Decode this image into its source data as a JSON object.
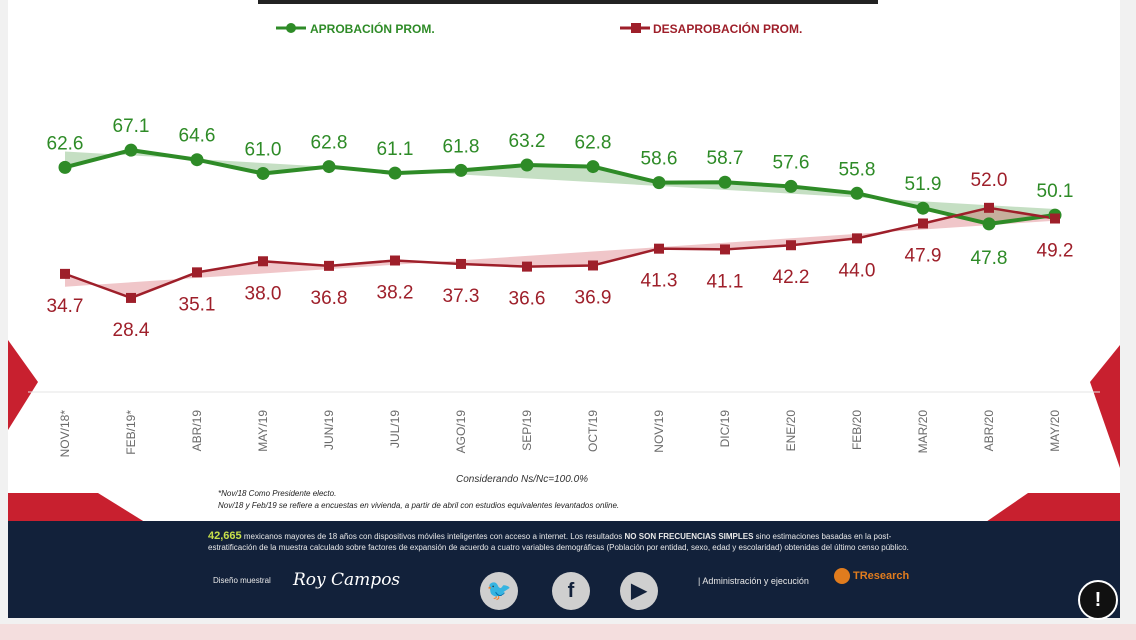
{
  "chart_data": {
    "type": "line",
    "categories": [
      "NOV/18*",
      "FEB/19*",
      "ABR/19",
      "MAY/19",
      "JUN/19",
      "JUL/19",
      "AGO/19",
      "SEP/19",
      "OCT/19",
      "NOV/19",
      "DIC/19",
      "ENE/20",
      "FEB/20",
      "MAR/20",
      "ABR/20",
      "MAY/20"
    ],
    "series": [
      {
        "name": "APROBACIÓN PROM.",
        "values": [
          62.6,
          67.1,
          64.6,
          61.0,
          62.8,
          61.1,
          61.8,
          63.2,
          62.8,
          58.6,
          58.7,
          57.6,
          55.8,
          51.9,
          47.8,
          50.1
        ],
        "labels": [
          "62.6",
          "67.1",
          "64.6",
          "61.0",
          "62.8",
          "61.1",
          "61.8",
          "63.2",
          "62.8",
          "58.6",
          "58.7",
          "57.6",
          "55.8",
          "51.9",
          "47.8",
          "50.1"
        ],
        "color": "#2e8b27"
      },
      {
        "name": "DESAPROBACIÓN PROM.",
        "values": [
          34.7,
          28.4,
          35.1,
          38.0,
          36.8,
          38.2,
          37.3,
          36.6,
          36.9,
          41.3,
          41.1,
          42.2,
          44.0,
          47.9,
          52.0,
          49.2
        ],
        "labels": [
          "34.7",
          "28.4",
          "35.1",
          "38.0",
          "36.8",
          "38.2",
          "37.3",
          "36.6",
          "36.9",
          "41.3",
          "41.1",
          "42.2",
          "44.0",
          "47.9",
          "52.0",
          "49.2"
        ],
        "color": "#9e1f2a"
      }
    ],
    "title": "",
    "xlabel": "",
    "ylabel": "",
    "ylim": [
      20,
      75
    ],
    "trend_bands": true,
    "legend_position": "top",
    "grid": false
  },
  "notes": {
    "considering": "Considerando Ns/Nc=100.0%",
    "footnote1": "*Nov/18 Como Presidente electo.",
    "footnote2": "Nov/18 y Feb/19 se refiere a encuestas en vivienda, a partir de abril con estudios equivalentes levantados online."
  },
  "footer": {
    "sample_count": "42,665",
    "method_text_a": " mexicanos mayores de 18 años con dispositivos móviles inteligentes con acceso a internet. Los resultados ",
    "method_bold": "NO SON FRECUENCIAS SIMPLES",
    "method_text_b": " sino estimaciones basadas en la post-estratificación de la muestra calculado sobre factores de expansión de acuerdo a cuatro variables demográficas (Población por entidad, sexo, edad y escolaridad) obtenidas del último censo público.",
    "design_label": "Diseño muestral",
    "design_signature": "Roy Campos",
    "admin_text": "| Administración y ejecución",
    "brand": "TResearch"
  },
  "icons": {
    "twitter": "twitter-icon",
    "facebook": "facebook-icon",
    "youtube": "youtube-icon",
    "alert": "alert-icon"
  },
  "colors": {
    "approval": "#2e8b27",
    "disapproval": "#9e1f2a",
    "footer_bg": "#12213a",
    "accent_red": "#c8202f"
  }
}
